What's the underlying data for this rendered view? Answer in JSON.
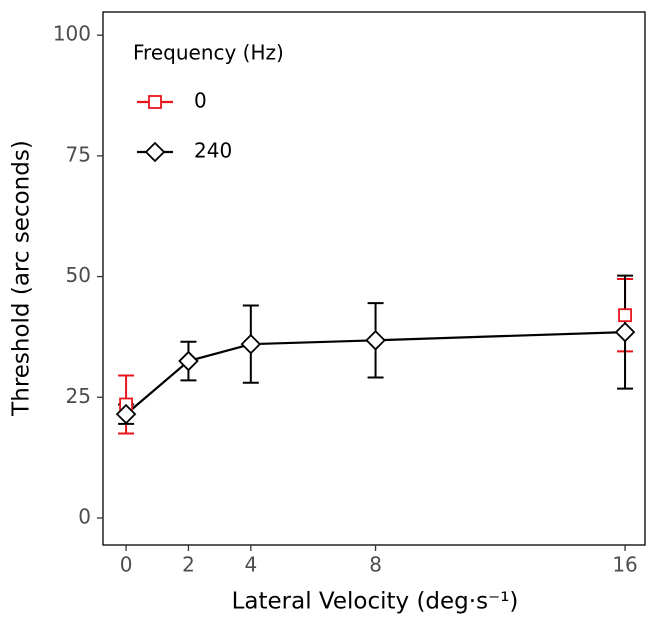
{
  "chart_data": {
    "type": "line",
    "xlabel": "Lateral Velocity (deg·s⁻¹)",
    "ylabel": "Threshold (arc seconds)",
    "legend_title": "Frequency (Hz)",
    "legend": "top-left",
    "x": [
      0,
      2,
      4,
      8,
      16
    ],
    "series": [
      {
        "name": "0",
        "color": "#e8141c",
        "marker": "square",
        "values": [
          23.5,
          null,
          null,
          null,
          42
        ],
        "errors": [
          6,
          null,
          null,
          null,
          7.5
        ]
      },
      {
        "name": "240",
        "color": "#000000",
        "marker": "diamond",
        "values": [
          21.5,
          32.5,
          36,
          36.8,
          38.5
        ],
        "errors": [
          2,
          4,
          8,
          7.7,
          11.7
        ]
      }
    ],
    "xlim": [
      -0.74,
      16.64
    ],
    "ylim": [
      -5.6,
      104.8
    ],
    "xticks": [
      0,
      2,
      4,
      8,
      16
    ],
    "yticks": [
      0,
      25,
      50,
      75,
      100
    ]
  }
}
